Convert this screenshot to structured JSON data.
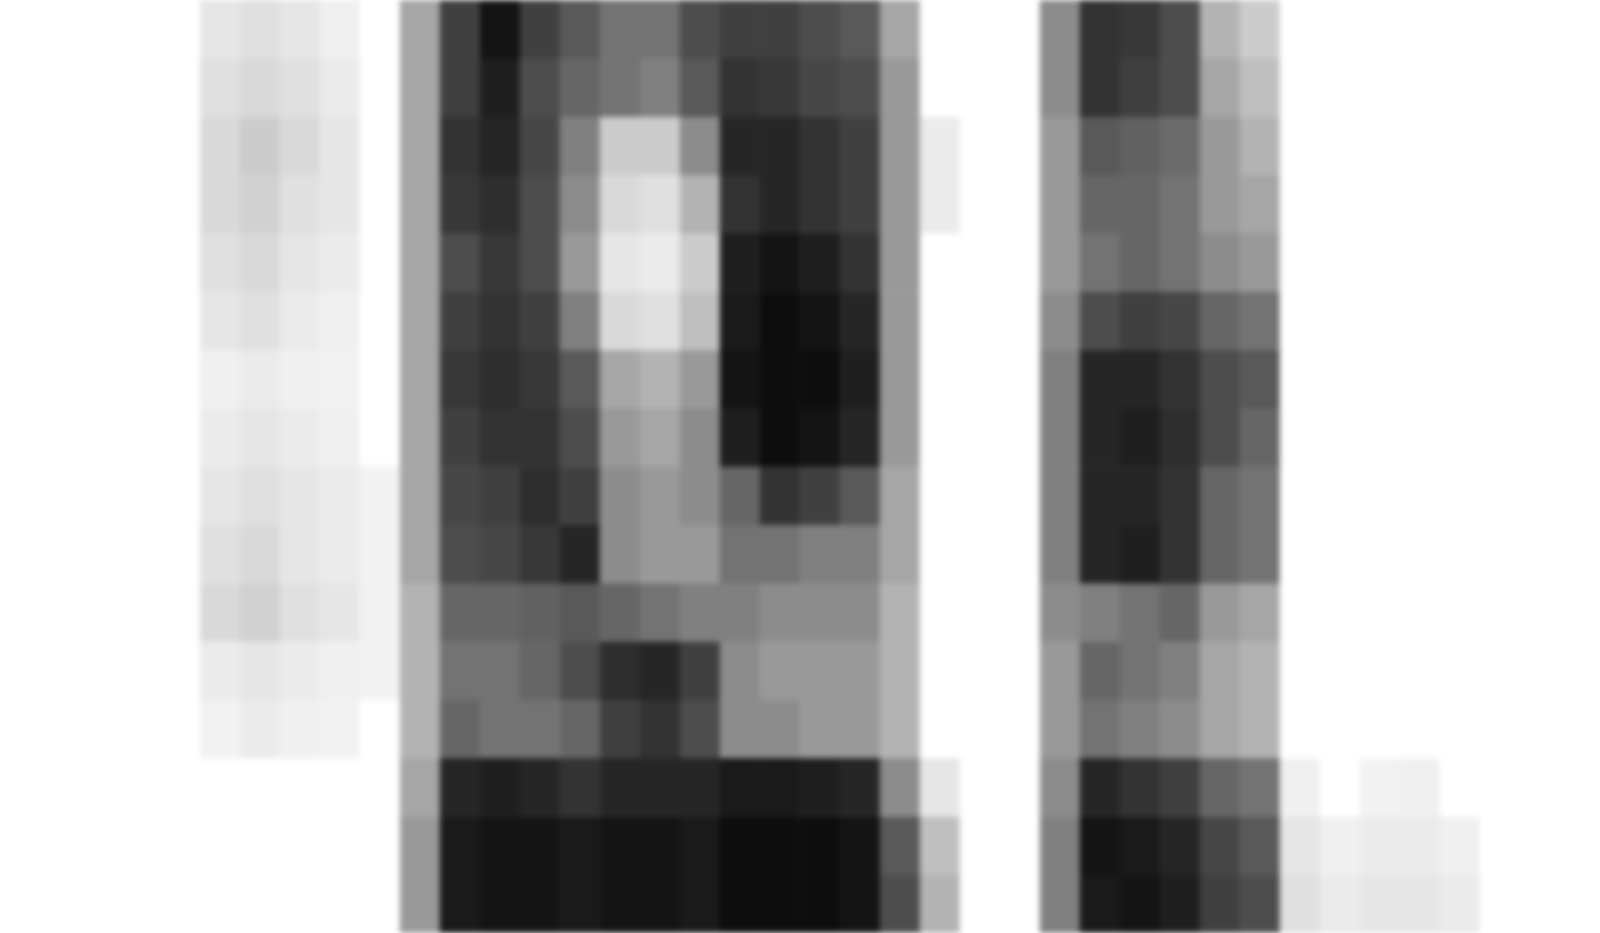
{
  "chart_data": {
    "type": "heatmap",
    "tick_labels": false,
    "grid": false,
    "zlim": [
      0,
      100
    ],
    "cells": [
      [
        0,
        0,
        0,
        0,
        0,
        0,
        0,
        0,
        0,
        0,
        40,
        90,
        92,
        92,
        90,
        92,
        92,
        90,
        95,
        95,
        95,
        92,
        70,
        30,
        0,
        0,
        50,
        90,
        92,
        88,
        75,
        70,
        12,
        8,
        10,
        10,
        8,
        0,
        0,
        0
      ],
      [
        0,
        0,
        0,
        0,
        0,
        0,
        0,
        0,
        0,
        0,
        40,
        90,
        92,
        92,
        90,
        92,
        92,
        90,
        95,
        95,
        95,
        92,
        65,
        25,
        0,
        0,
        50,
        92,
        90,
        85,
        72,
        65,
        10,
        6,
        8,
        8,
        6,
        0,
        0,
        0
      ],
      [
        0,
        0,
        0,
        0,
        0,
        0,
        0,
        0,
        0,
        0,
        35,
        85,
        88,
        85,
        80,
        85,
        85,
        85,
        90,
        90,
        88,
        85,
        45,
        10,
        0,
        0,
        45,
        85,
        80,
        75,
        60,
        55,
        6,
        0,
        5,
        6,
        0,
        0,
        0,
        0
      ],
      [
        0,
        0,
        0,
        0,
        0,
        5,
        8,
        6,
        5,
        0,
        30,
        60,
        55,
        55,
        60,
        75,
        80,
        70,
        45,
        45,
        40,
        40,
        30,
        0,
        0,
        0,
        40,
        55,
        50,
        45,
        35,
        30,
        0,
        0,
        0,
        0,
        0,
        0,
        0,
        0
      ],
      [
        0,
        0,
        0,
        0,
        0,
        8,
        10,
        8,
        6,
        5,
        30,
        55,
        55,
        60,
        70,
        82,
        85,
        75,
        45,
        40,
        40,
        40,
        30,
        0,
        0,
        0,
        40,
        60,
        55,
        50,
        35,
        30,
        0,
        0,
        0,
        0,
        0,
        0,
        0,
        0
      ],
      [
        0,
        0,
        0,
        0,
        0,
        15,
        18,
        12,
        10,
        5,
        30,
        60,
        60,
        62,
        65,
        60,
        55,
        50,
        50,
        45,
        45,
        45,
        30,
        0,
        0,
        0,
        45,
        50,
        55,
        60,
        40,
        35,
        0,
        0,
        0,
        0,
        0,
        0,
        0,
        0
      ],
      [
        0,
        0,
        0,
        0,
        0,
        12,
        15,
        10,
        8,
        5,
        35,
        70,
        72,
        78,
        85,
        45,
        40,
        40,
        55,
        55,
        50,
        50,
        35,
        0,
        0,
        0,
        50,
        85,
        88,
        80,
        60,
        55,
        0,
        0,
        0,
        0,
        0,
        0,
        0,
        0
      ],
      [
        0,
        0,
        0,
        0,
        0,
        10,
        12,
        10,
        8,
        5,
        35,
        72,
        75,
        82,
        75,
        45,
        40,
        45,
        60,
        80,
        75,
        65,
        35,
        0,
        0,
        0,
        50,
        85,
        85,
        80,
        60,
        55,
        0,
        0,
        0,
        0,
        0,
        0,
        0,
        0
      ],
      [
        0,
        0,
        0,
        0,
        0,
        8,
        10,
        8,
        6,
        0,
        35,
        75,
        80,
        80,
        70,
        40,
        35,
        45,
        88,
        95,
        92,
        85,
        40,
        0,
        0,
        0,
        50,
        85,
        88,
        82,
        70,
        60,
        0,
        0,
        0,
        0,
        0,
        0,
        0,
        0
      ],
      [
        0,
        0,
        0,
        0,
        0,
        6,
        8,
        6,
        5,
        0,
        35,
        78,
        82,
        78,
        65,
        35,
        30,
        40,
        92,
        95,
        95,
        88,
        40,
        0,
        0,
        0,
        50,
        85,
        85,
        80,
        70,
        65,
        0,
        0,
        0,
        0,
        0,
        0,
        0,
        0
      ],
      [
        0,
        0,
        0,
        0,
        0,
        10,
        12,
        8,
        6,
        0,
        35,
        75,
        80,
        75,
        50,
        15,
        12,
        25,
        90,
        95,
        92,
        85,
        40,
        0,
        0,
        0,
        45,
        70,
        75,
        72,
        60,
        55,
        0,
        0,
        0,
        0,
        0,
        0,
        0,
        0
      ],
      [
        0,
        0,
        0,
        0,
        0,
        12,
        15,
        10,
        8,
        0,
        35,
        70,
        78,
        70,
        40,
        10,
        8,
        20,
        88,
        92,
        88,
        80,
        40,
        0,
        0,
        0,
        40,
        55,
        60,
        55,
        45,
        40,
        0,
        0,
        0,
        0,
        0,
        0,
        0,
        0
      ],
      [
        0,
        0,
        0,
        0,
        0,
        15,
        18,
        12,
        10,
        0,
        35,
        78,
        82,
        70,
        45,
        15,
        12,
        30,
        80,
        85,
        80,
        75,
        40,
        8,
        0,
        0,
        40,
        60,
        60,
        55,
        40,
        35,
        0,
        0,
        0,
        0,
        0,
        0,
        0,
        0
      ],
      [
        0,
        0,
        0,
        0,
        0,
        15,
        20,
        15,
        10,
        0,
        35,
        80,
        85,
        72,
        50,
        20,
        20,
        45,
        85,
        85,
        80,
        75,
        40,
        8,
        0,
        0,
        40,
        65,
        62,
        58,
        40,
        30,
        0,
        0,
        0,
        0,
        0,
        0,
        0,
        0
      ],
      [
        0,
        0,
        0,
        0,
        0,
        12,
        15,
        12,
        8,
        0,
        35,
        75,
        88,
        70,
        60,
        55,
        50,
        65,
        80,
        78,
        72,
        70,
        40,
        0,
        0,
        0,
        45,
        80,
        75,
        70,
        35,
        25,
        0,
        0,
        0,
        0,
        0,
        0,
        0,
        0
      ],
      [
        0,
        0,
        0,
        0,
        0,
        10,
        12,
        10,
        6,
        0,
        35,
        75,
        92,
        75,
        65,
        55,
        55,
        70,
        75,
        75,
        70,
        65,
        35,
        0,
        0,
        0,
        45,
        80,
        78,
        70,
        30,
        20,
        0,
        0,
        0,
        0,
        0,
        0,
        0,
        0
      ]
    ]
  }
}
